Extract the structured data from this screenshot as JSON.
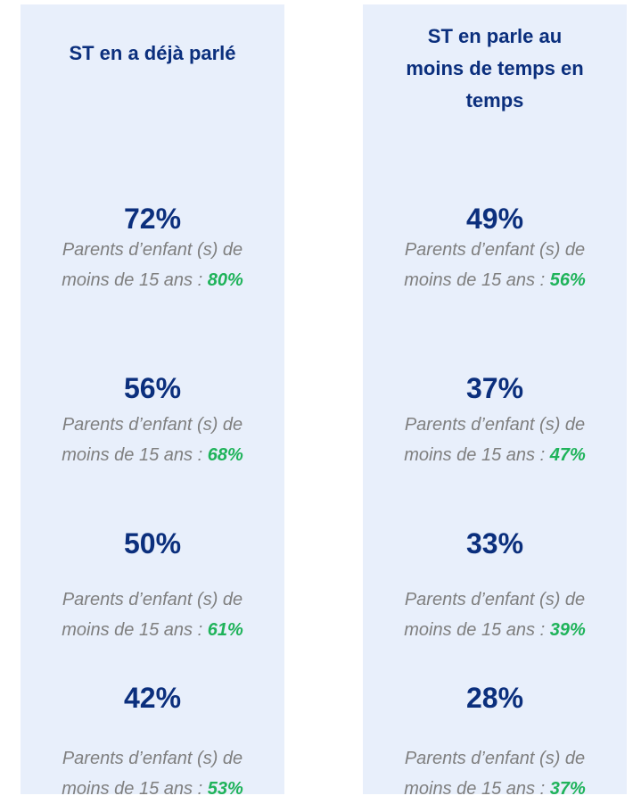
{
  "columns": [
    {
      "header": "ST en a déjà parlé",
      "rows": [
        {
          "value": "72%",
          "note": "Parents d’enfant (s) de moins de 15 ans :",
          "highlight": "80%"
        },
        {
          "value": "56%",
          "note": "Parents d’enfant (s) de moins de 15 ans :",
          "highlight": "68%"
        },
        {
          "value": "50%",
          "note": "Parents d’enfant (s) de moins de 15 ans :",
          "highlight": "61%"
        },
        {
          "value": "42%",
          "note": "Parents d’enfant (s) de moins de 15 ans :",
          "highlight": "53%"
        }
      ]
    },
    {
      "header": "ST en parle au moins de temps en temps",
      "rows": [
        {
          "value": "49%",
          "note": "Parents d’enfant (s) de moins de 15 ans :",
          "highlight": "56%"
        },
        {
          "value": "37%",
          "note": "Parents d’enfant (s) de moins de 15 ans :",
          "highlight": "47%"
        },
        {
          "value": "33%",
          "note": "Parents d’enfant (s) de moins de 15 ans :",
          "highlight": "39%"
        },
        {
          "value": "28%",
          "note": "Parents d’enfant (s) de moins de 15 ans :",
          "highlight": "37%"
        }
      ]
    }
  ]
}
